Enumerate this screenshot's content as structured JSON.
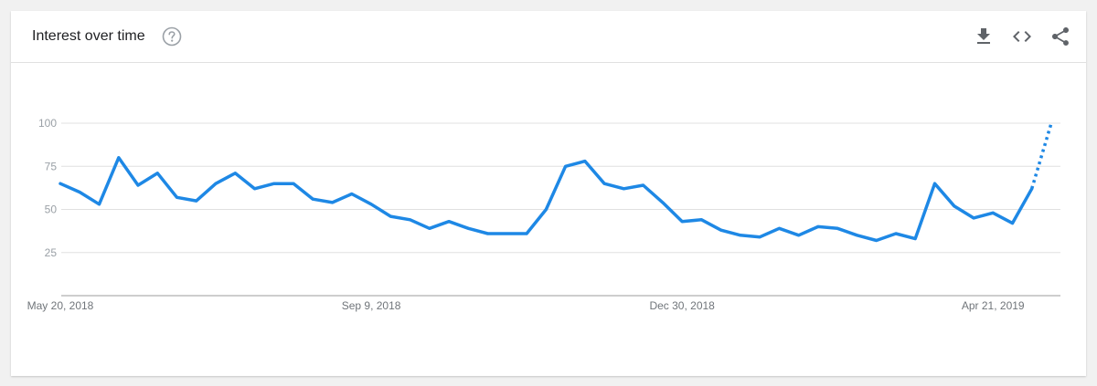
{
  "header": {
    "title": "Interest over time",
    "help_icon": "help-circle-icon",
    "actions": [
      {
        "name": "download-button",
        "icon": "download-icon"
      },
      {
        "name": "embed-button",
        "icon": "code-icon"
      },
      {
        "name": "share-button",
        "icon": "share-icon"
      }
    ]
  },
  "colors": {
    "line": "#1e88e5",
    "grid": "#e0e0e0",
    "axis": "#9e9e9e"
  },
  "chart_data": {
    "type": "line",
    "ylim": [
      0,
      100
    ],
    "y_ticks": [
      25,
      50,
      75,
      100
    ],
    "x_tick_labels": [
      "May 20, 2018",
      "Sep 9, 2018",
      "Dec 30, 2018",
      "Apr 21, 2019"
    ],
    "x_tick_indices": [
      0,
      16,
      32,
      48
    ],
    "series": [
      {
        "values": [
          65,
          60,
          53,
          80,
          64,
          71,
          57,
          55,
          65,
          71,
          62,
          65,
          65,
          56,
          54,
          59,
          53,
          46,
          44,
          39,
          43,
          39,
          36,
          36,
          36,
          50,
          75,
          78,
          65,
          62,
          64,
          54,
          43,
          44,
          38,
          35,
          34,
          39,
          35,
          40,
          39,
          35,
          32,
          36,
          33,
          65,
          52,
          45,
          48,
          42,
          62,
          100
        ],
        "partial_from_index": 50
      }
    ]
  }
}
